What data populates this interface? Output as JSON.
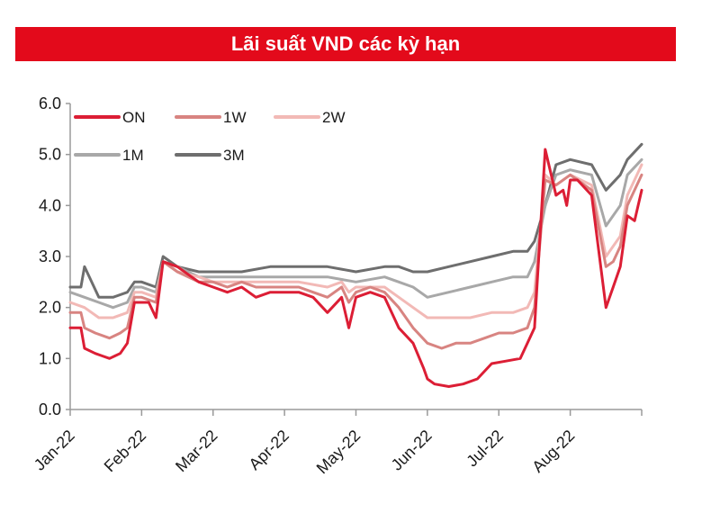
{
  "chart_data": {
    "type": "line",
    "title": "Lãi suất VND các kỳ hạn",
    "xlabel": "",
    "ylabel": "",
    "ylim": [
      0,
      6
    ],
    "yticks": [
      "0.0",
      "1.0",
      "2.0",
      "3.0",
      "4.0",
      "5.0",
      "6.0"
    ],
    "xlim": [
      0,
      8
    ],
    "xticks": [
      "Jan-22",
      "Feb-22",
      "Mar-22",
      "Apr-22",
      "May-22",
      "Jun-22",
      "Jul-22",
      "Aug-22"
    ],
    "grid": false,
    "legend_position": "top-left",
    "series": [
      {
        "name": "ON",
        "color": "#dc1e35",
        "x": [
          0,
          0.15,
          0.2,
          0.35,
          0.45,
          0.55,
          0.7,
          0.8,
          0.9,
          1.0,
          1.1,
          1.2,
          1.3,
          1.5,
          1.7,
          1.8,
          2.0,
          2.2,
          2.4,
          2.6,
          2.8,
          3.0,
          3.2,
          3.4,
          3.6,
          3.8,
          3.9,
          4.0,
          4.2,
          4.4,
          4.6,
          4.8,
          4.95,
          5.0,
          5.1,
          5.3,
          5.5,
          5.7,
          5.9,
          6.1,
          6.3,
          6.5,
          6.65,
          6.8,
          6.9,
          6.95,
          7.0,
          7.1,
          7.3,
          7.5,
          7.6,
          7.7,
          7.8,
          7.9,
          8.0
        ],
        "values": [
          1.6,
          1.6,
          1.2,
          1.1,
          1.05,
          1.0,
          1.1,
          1.3,
          2.1,
          2.1,
          2.1,
          1.8,
          2.9,
          2.8,
          2.6,
          2.5,
          2.4,
          2.3,
          2.4,
          2.2,
          2.3,
          2.3,
          2.3,
          2.2,
          1.9,
          2.2,
          1.6,
          2.2,
          2.3,
          2.2,
          1.6,
          1.3,
          0.8,
          0.6,
          0.5,
          0.45,
          0.5,
          0.6,
          0.9,
          0.95,
          1.0,
          1.6,
          5.1,
          4.2,
          4.3,
          4.0,
          4.5,
          4.5,
          4.2,
          2.0,
          2.4,
          2.8,
          3.8,
          3.7,
          4.3
        ]
      },
      {
        "name": "1W",
        "color": "#d88481",
        "x": [
          0,
          0.15,
          0.2,
          0.35,
          0.55,
          0.7,
          0.8,
          0.9,
          1.0,
          1.2,
          1.3,
          1.5,
          1.8,
          2.0,
          2.2,
          2.4,
          2.6,
          2.8,
          3.0,
          3.2,
          3.4,
          3.6,
          3.8,
          3.9,
          4.0,
          4.2,
          4.4,
          4.6,
          4.8,
          5.0,
          5.2,
          5.4,
          5.6,
          5.8,
          6.0,
          6.2,
          6.4,
          6.5,
          6.65,
          6.8,
          7.0,
          7.1,
          7.3,
          7.5,
          7.6,
          7.7,
          7.8,
          8.0
        ],
        "values": [
          1.9,
          1.9,
          1.6,
          1.5,
          1.4,
          1.5,
          1.6,
          2.2,
          2.2,
          2.1,
          2.9,
          2.7,
          2.5,
          2.5,
          2.4,
          2.5,
          2.4,
          2.4,
          2.4,
          2.4,
          2.3,
          2.2,
          2.4,
          2.1,
          2.3,
          2.4,
          2.3,
          2.0,
          1.6,
          1.3,
          1.2,
          1.3,
          1.3,
          1.4,
          1.5,
          1.5,
          1.6,
          2.0,
          4.5,
          4.4,
          4.6,
          4.5,
          4.3,
          2.8,
          2.9,
          3.2,
          4.0,
          4.6
        ]
      },
      {
        "name": "2W",
        "color": "#f2b9b6",
        "x": [
          0,
          0.2,
          0.4,
          0.6,
          0.8,
          0.9,
          1.0,
          1.2,
          1.3,
          1.5,
          1.8,
          2.0,
          2.4,
          2.8,
          3.2,
          3.6,
          3.8,
          3.9,
          4.0,
          4.4,
          4.6,
          4.8,
          5.0,
          5.3,
          5.6,
          5.9,
          6.2,
          6.4,
          6.5,
          6.65,
          6.8,
          7.0,
          7.3,
          7.5,
          7.7,
          7.8,
          8.0
        ],
        "values": [
          2.1,
          2.0,
          1.8,
          1.8,
          1.9,
          2.3,
          2.3,
          2.2,
          2.9,
          2.7,
          2.6,
          2.5,
          2.5,
          2.5,
          2.5,
          2.4,
          2.5,
          2.3,
          2.4,
          2.4,
          2.2,
          2.0,
          1.8,
          1.8,
          1.8,
          1.9,
          1.9,
          2.0,
          2.3,
          4.6,
          4.4,
          4.6,
          4.4,
          3.0,
          3.4,
          4.2,
          4.8
        ]
      },
      {
        "name": "1M",
        "color": "#a8a8a8",
        "x": [
          0,
          0.2,
          0.4,
          0.6,
          0.8,
          0.9,
          1.0,
          1.2,
          1.3,
          1.5,
          1.8,
          2.0,
          2.4,
          2.8,
          3.2,
          3.6,
          4.0,
          4.4,
          4.6,
          4.8,
          5.0,
          5.3,
          5.6,
          5.9,
          6.2,
          6.4,
          6.5,
          6.65,
          6.8,
          7.0,
          7.3,
          7.5,
          7.7,
          7.8,
          8.0
        ],
        "values": [
          2.3,
          2.2,
          2.1,
          2.0,
          2.1,
          2.4,
          2.4,
          2.3,
          2.9,
          2.8,
          2.6,
          2.6,
          2.6,
          2.6,
          2.6,
          2.6,
          2.5,
          2.6,
          2.5,
          2.4,
          2.2,
          2.3,
          2.4,
          2.5,
          2.6,
          2.6,
          2.9,
          4.0,
          4.6,
          4.7,
          4.6,
          3.6,
          4.0,
          4.6,
          4.9
        ]
      },
      {
        "name": "3M",
        "color": "#6e6e6e",
        "x": [
          0,
          0.15,
          0.2,
          0.4,
          0.6,
          0.8,
          0.9,
          1.0,
          1.2,
          1.3,
          1.5,
          1.8,
          2.0,
          2.4,
          2.8,
          3.2,
          3.6,
          4.0,
          4.4,
          4.6,
          4.8,
          5.0,
          5.3,
          5.6,
          5.9,
          6.2,
          6.4,
          6.5,
          6.65,
          6.8,
          7.0,
          7.3,
          7.5,
          7.7,
          7.8,
          8.0
        ],
        "values": [
          2.4,
          2.4,
          2.8,
          2.2,
          2.2,
          2.3,
          2.5,
          2.5,
          2.4,
          3.0,
          2.8,
          2.7,
          2.7,
          2.7,
          2.8,
          2.8,
          2.8,
          2.7,
          2.8,
          2.8,
          2.7,
          2.7,
          2.8,
          2.9,
          3.0,
          3.1,
          3.1,
          3.3,
          4.0,
          4.8,
          4.9,
          4.8,
          4.3,
          4.6,
          4.9,
          5.2
        ]
      }
    ]
  }
}
